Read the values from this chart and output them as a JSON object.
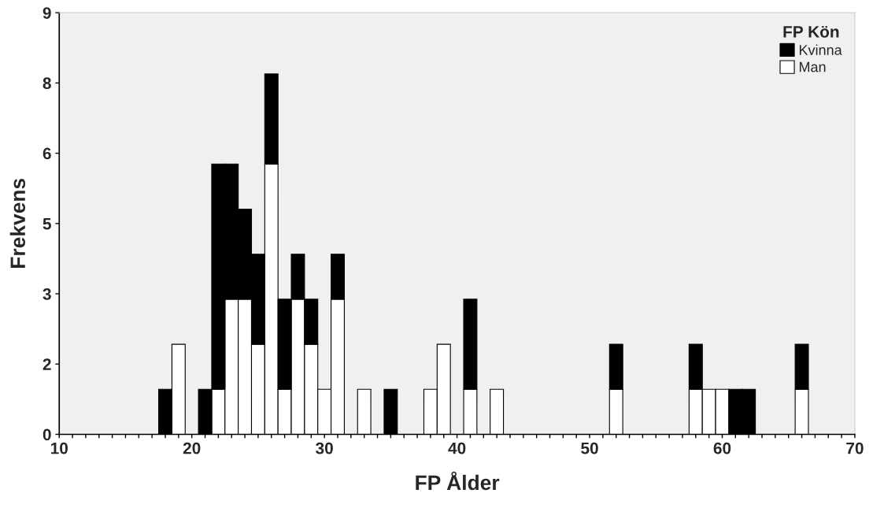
{
  "chart_data": {
    "type": "bar",
    "xlabel": "FP Ålder",
    "ylabel": "Frekvens",
    "legend_title": "FP Kön",
    "legend": "top right",
    "stacked": true,
    "x": [
      18,
      19,
      21,
      22,
      23,
      24,
      25,
      26,
      27,
      28,
      29,
      30,
      31,
      33,
      35,
      38,
      39,
      41,
      43,
      52,
      58,
      59,
      60,
      61,
      62,
      66
    ],
    "series": [
      {
        "name": "Man",
        "color": "#ffffff",
        "values": [
          0,
          2,
          0,
          1,
          3,
          3,
          2,
          6,
          1,
          3,
          2,
          1,
          3,
          1,
          0,
          1,
          2,
          1,
          1,
          1,
          1,
          1,
          1,
          0,
          0,
          1
        ]
      },
      {
        "name": "Kvinna",
        "color": "#000000",
        "values": [
          1,
          0,
          1,
          5,
          3,
          2,
          2,
          2,
          2,
          1,
          1,
          0,
          1,
          0,
          1,
          0,
          0,
          2,
          0,
          1,
          1,
          0,
          0,
          1,
          1,
          1
        ]
      }
    ],
    "xlim": [
      10,
      70
    ],
    "xticks": [
      10,
      {
        "value": 11,
        "label": null
      },
      {
        "value": 12,
        "label": null
      },
      {
        "value": 13,
        "label": null
      },
      {
        "value": 14,
        "label": null
      },
      {
        "value": 15,
        "label": null
      },
      {
        "value": 16,
        "label": null
      },
      {
        "value": 17,
        "label": null
      },
      {
        "value": 18,
        "label": null
      },
      {
        "value": 19,
        "label": null
      },
      20,
      {
        "value": 21,
        "label": null
      },
      {
        "value": 22,
        "label": null
      },
      {
        "value": 23,
        "label": null
      },
      {
        "value": 24,
        "label": null
      },
      {
        "value": 25,
        "label": null
      },
      {
        "value": 26,
        "label": null
      },
      {
        "value": 27,
        "label": null
      },
      {
        "value": 28,
        "label": null
      },
      {
        "value": 29,
        "label": null
      },
      30,
      {
        "value": 31,
        "label": null
      },
      {
        "value": 32,
        "label": null
      },
      {
        "value": 33,
        "label": null
      },
      {
        "value": 34,
        "label": null
      },
      {
        "value": 35,
        "label": null
      },
      {
        "value": 36,
        "label": null
      },
      {
        "value": 37,
        "label": null
      },
      {
        "value": 38,
        "label": null
      },
      {
        "value": 39,
        "label": null
      },
      40,
      {
        "value": 41,
        "label": null
      },
      {
        "value": 42,
        "label": null
      },
      {
        "value": 43,
        "label": null
      },
      {
        "value": 44,
        "label": null
      },
      {
        "value": 45,
        "label": null
      },
      {
        "value": 46,
        "label": null
      },
      {
        "value": 47,
        "label": null
      },
      {
        "value": 48,
        "label": null
      },
      {
        "value": 49,
        "label": null
      },
      50,
      {
        "value": 51,
        "label": null
      },
      {
        "value": 52,
        "label": null
      },
      {
        "value": 53,
        "label": null
      },
      {
        "value": 54,
        "label": null
      },
      {
        "value": 55,
        "label": null
      },
      {
        "value": 56,
        "label": null
      },
      {
        "value": 57,
        "label": null
      },
      {
        "value": 58,
        "label": null
      },
      {
        "value": 59,
        "label": null
      },
      60,
      {
        "value": 61,
        "label": null
      },
      {
        "value": 62,
        "label": null
      },
      {
        "value": 63,
        "label": null
      },
      {
        "value": 64,
        "label": null
      },
      {
        "value": 65,
        "label": null
      },
      {
        "value": 66,
        "label": null
      },
      {
        "value": 67,
        "label": null
      },
      {
        "value": 68,
        "label": null
      },
      {
        "value": 69,
        "label": null
      },
      70
    ],
    "ylim": [
      0,
      9.36
    ],
    "yticks": [
      0,
      {
        "value": 1.56,
        "label": "2"
      },
      {
        "value": 3.12,
        "label": "3"
      },
      {
        "value": 4.68,
        "label": "5"
      },
      {
        "value": 6.24,
        "label": "6"
      },
      {
        "value": 7.8,
        "label": "8"
      },
      {
        "value": 9.36,
        "label": "9"
      }
    ],
    "grid": false
  }
}
